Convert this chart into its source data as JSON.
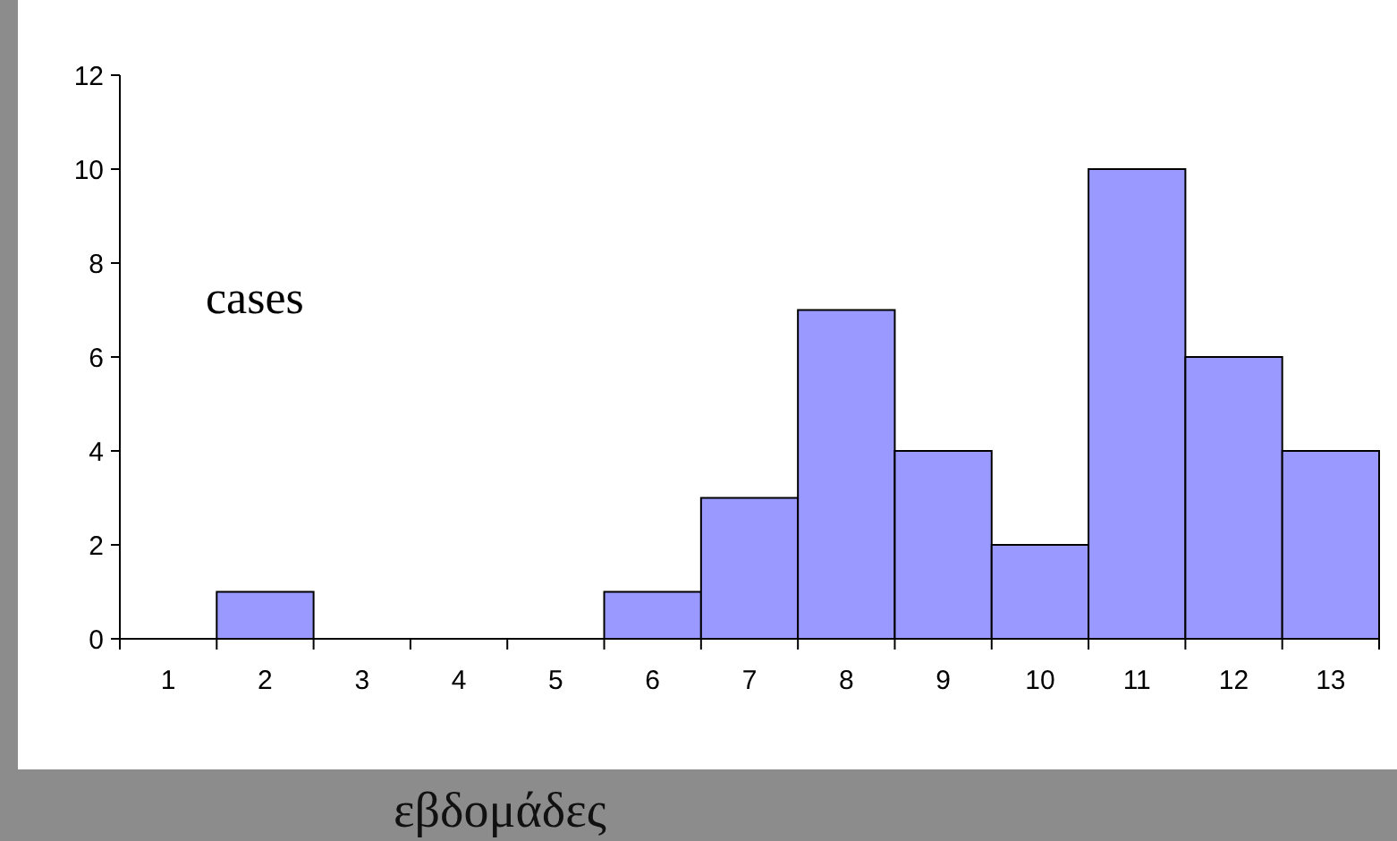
{
  "chart_data": {
    "type": "bar",
    "categories": [
      "1",
      "2",
      "3",
      "4",
      "5",
      "6",
      "7",
      "8",
      "9",
      "10",
      "11",
      "12",
      "13"
    ],
    "values": [
      0,
      1,
      0,
      0,
      0,
      1,
      3,
      7,
      4,
      2,
      10,
      6,
      4
    ],
    "color": "#9999ff",
    "ylim": [
      0,
      12
    ],
    "yticks": [
      0,
      2,
      4,
      6,
      8,
      10,
      12
    ],
    "ylabel": "cases",
    "xlabel": "εβδομάδες"
  }
}
